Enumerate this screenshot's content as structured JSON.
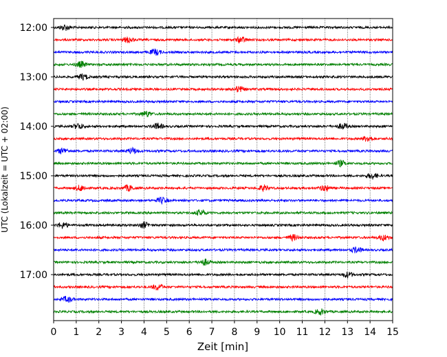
{
  "chart_data": {
    "type": "line",
    "title": "",
    "xlabel": "Zeit  [min]",
    "ylabel": "UTC (Lokalzeit = UTC + 02:00)",
    "xlim": [
      0,
      15
    ],
    "x_ticks": [
      0,
      1,
      2,
      3,
      4,
      5,
      6,
      7,
      8,
      9,
      10,
      11,
      12,
      13,
      14,
      15
    ],
    "x_tick_labels": [
      "0",
      "1",
      "2",
      "3",
      "4",
      "5",
      "6",
      "7",
      "8",
      "9",
      "10",
      "11",
      "12",
      "13",
      "14",
      "15"
    ],
    "y_tick_labels": [
      "12:00",
      "13:00",
      "14:00",
      "15:00",
      "16:00",
      "17:00"
    ],
    "y_tick_rows": [
      0,
      4,
      8,
      12,
      16,
      20
    ],
    "grid": {
      "x": true,
      "y": false
    },
    "row_colors": [
      "#000000",
      "#ff0000",
      "#0000ff",
      "#008000"
    ],
    "series": [
      {
        "start": "12:00",
        "color": "#000000",
        "events": [
          0.5
        ]
      },
      {
        "start": "12:15",
        "color": "#ff0000",
        "events": [
          3.3,
          8.3
        ]
      },
      {
        "start": "12:30",
        "color": "#0000ff",
        "events": [
          4.5
        ]
      },
      {
        "start": "12:45",
        "color": "#008000",
        "events": [
          1.2
        ]
      },
      {
        "start": "13:00",
        "color": "#000000",
        "events": [
          1.3
        ]
      },
      {
        "start": "13:15",
        "color": "#ff0000",
        "events": [
          8.2
        ]
      },
      {
        "start": "13:30",
        "color": "#0000ff",
        "events": []
      },
      {
        "start": "13:45",
        "color": "#008000",
        "events": [
          4.1
        ]
      },
      {
        "start": "14:00",
        "color": "#000000",
        "events": [
          1.1,
          4.6,
          12.8
        ]
      },
      {
        "start": "14:15",
        "color": "#ff0000",
        "events": [
          13.9
        ]
      },
      {
        "start": "14:30",
        "color": "#0000ff",
        "events": [
          0.4,
          3.5
        ]
      },
      {
        "start": "14:45",
        "color": "#008000",
        "events": [
          12.7
        ]
      },
      {
        "start": "15:00",
        "color": "#000000",
        "events": [
          14.1
        ]
      },
      {
        "start": "15:15",
        "color": "#ff0000",
        "events": [
          1.2,
          3.3,
          9.3,
          12.0
        ]
      },
      {
        "start": "15:30",
        "color": "#0000ff",
        "events": [
          4.8
        ]
      },
      {
        "start": "15:45",
        "color": "#008000",
        "events": [
          6.5
        ]
      },
      {
        "start": "16:00",
        "color": "#000000",
        "events": [
          0.4,
          4.0
        ]
      },
      {
        "start": "16:15",
        "color": "#ff0000",
        "events": [
          10.6,
          14.6
        ]
      },
      {
        "start": "16:30",
        "color": "#0000ff",
        "events": [
          13.4
        ]
      },
      {
        "start": "16:45",
        "color": "#008000",
        "events": [
          6.7
        ]
      },
      {
        "start": "17:00",
        "color": "#000000",
        "events": [
          13.0
        ]
      },
      {
        "start": "17:15",
        "color": "#ff0000",
        "events": [
          4.6
        ]
      },
      {
        "start": "17:30",
        "color": "#0000ff",
        "events": [
          0.6
        ]
      },
      {
        "start": "17:45",
        "color": "#008000",
        "events": [
          11.8
        ]
      }
    ]
  }
}
